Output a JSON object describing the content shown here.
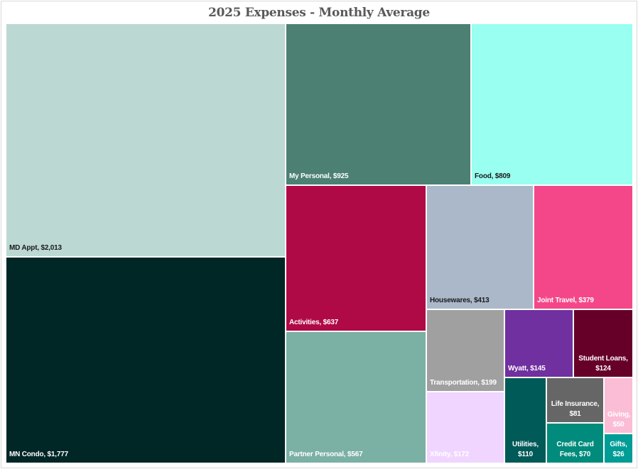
{
  "chart_data": {
    "type": "treemap",
    "title": "2025 Expenses - Monthly Average",
    "unit": "$",
    "items": [
      {
        "name": "MD Appt",
        "value": 2013,
        "label": "MD Appt, $2,013",
        "color": "#bcd8d2",
        "text_color": "#1a1a1a"
      },
      {
        "name": "MN Condo",
        "value": 1777,
        "label": "MN Condo, $1,777",
        "color": "#002626",
        "text_color": "#ffffff"
      },
      {
        "name": "My Personal",
        "value": 925,
        "label": "My Personal, $925",
        "color": "#4b8073",
        "text_color": "#ffffff"
      },
      {
        "name": "Food",
        "value": 809,
        "label": "Food, $809",
        "color": "#99fff0",
        "text_color": "#1a1a1a"
      },
      {
        "name": "Activities",
        "value": 637,
        "label": "Activities, $637",
        "color": "#b00a46",
        "text_color": "#ffffff"
      },
      {
        "name": "Partner Personal",
        "value": 567,
        "label": "Partner Personal, $567",
        "color": "#7bb0a4",
        "text_color": "#ffffff"
      },
      {
        "name": "Housewares",
        "value": 413,
        "label": "Housewares, $413",
        "color": "#abb8c9",
        "text_color": "#1a1a1a"
      },
      {
        "name": "Joint Travel",
        "value": 379,
        "label": "Joint Travel, $379",
        "color": "#f44789",
        "text_color": "#ffffff"
      },
      {
        "name": "Transportation",
        "value": 199,
        "label": "Transportation, $199",
        "color": "#a0a0a0",
        "text_color": "#ffffff"
      },
      {
        "name": "Xfinity",
        "value": 172,
        "label": "Xfinity, $172",
        "color": "#efd5ff",
        "text_color": "#ffffff"
      },
      {
        "name": "Wyatt",
        "value": 145,
        "label": "Wyatt, $145",
        "color": "#7030a0",
        "text_color": "#ffffff"
      },
      {
        "name": "Student Loans",
        "value": 124,
        "label": "Student Loans, $124",
        "color": "#660029",
        "text_color": "#ffffff"
      },
      {
        "name": "Utilities",
        "value": 110,
        "label": "Utilities, $110",
        "color": "#005a57",
        "text_color": "#ffffff"
      },
      {
        "name": "Life Insurance",
        "value": 81,
        "label": "Life Insurance, $81",
        "color": "#666666",
        "text_color": "#ffffff"
      },
      {
        "name": "Credit Card Fees",
        "value": 70,
        "label": "Credit Card Fees, $70",
        "color": "#008b7c",
        "text_color": "#ffffff"
      },
      {
        "name": "Giving",
        "value": 50,
        "label": "Giving, $50",
        "color": "#fbbdd5",
        "text_color": "#ffffff"
      },
      {
        "name": "Gifts",
        "value": 26,
        "label": "Gifts, $26",
        "color": "#009c96",
        "text_color": "#ffffff"
      }
    ]
  }
}
